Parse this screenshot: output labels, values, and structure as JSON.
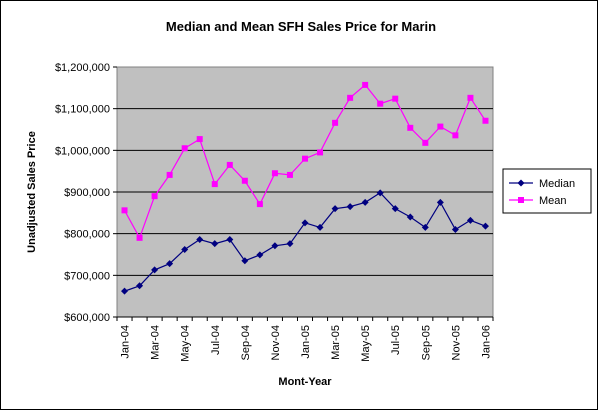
{
  "chart_data": {
    "type": "line",
    "title": "Median and Mean SFH Sales Price for Marin",
    "xlabel": "Mont-Year",
    "ylabel": "Unadjusted Sales Price",
    "ylim": [
      600000,
      1200000
    ],
    "y_ticks": [
      "$600,000",
      "$700,000",
      "$800,000",
      "$900,000",
      "$1,000,000",
      "$1,100,000",
      "$1,200,000"
    ],
    "y_tick_values": [
      600000,
      700000,
      800000,
      900000,
      1000000,
      1100000,
      1200000
    ],
    "grid": true,
    "legend_position": "right",
    "plot_background": "#c0c0c0",
    "categories": [
      "Jan-04",
      "Feb-04",
      "Mar-04",
      "Apr-04",
      "May-04",
      "Jun-04",
      "Jul-04",
      "Aug-04",
      "Sep-04",
      "Oct-04",
      "Nov-04",
      "Dec-04",
      "Jan-05",
      "Feb-05",
      "Mar-05",
      "Apr-05",
      "May-05",
      "Jun-05",
      "Jul-05",
      "Aug-05",
      "Sep-05",
      "Oct-05",
      "Nov-05",
      "Dec-05",
      "Jan-06"
    ],
    "category_labels_shown": [
      "Jan-04",
      "",
      "Mar-04",
      "",
      "May-04",
      "",
      "Jul-04",
      "",
      "Sep-04",
      "",
      "Nov-04",
      "",
      "Jan-05",
      "",
      "Mar-05",
      "",
      "May-05",
      "",
      "Jul-05",
      "",
      "Sep-05",
      "",
      "Nov-05",
      "",
      "Jan-06"
    ],
    "series": [
      {
        "name": "Median",
        "color": "#000080",
        "marker": "diamond",
        "values": [
          662000,
          675000,
          713000,
          728000,
          762000,
          786000,
          776000,
          786000,
          735000,
          749000,
          771000,
          776000,
          826000,
          815000,
          860000,
          865000,
          875000,
          898000,
          860000,
          840000,
          815000,
          875000,
          810000,
          832000,
          818000
        ]
      },
      {
        "name": "Mean",
        "color": "#ff00ff",
        "marker": "square",
        "values": [
          856000,
          790000,
          890000,
          941000,
          1005000,
          1027000,
          919000,
          965000,
          927000,
          871000,
          945000,
          941000,
          980000,
          995000,
          1066000,
          1126000,
          1157000,
          1112000,
          1124000,
          1054000,
          1018000,
          1057000,
          1036000,
          1126000,
          1071000
        ]
      }
    ]
  }
}
